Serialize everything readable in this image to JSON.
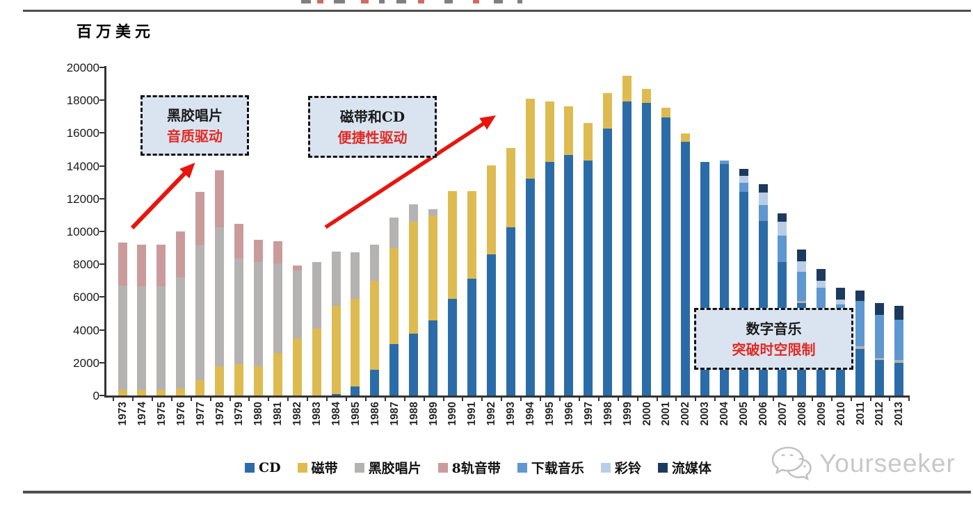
{
  "chart": {
    "unit_label": "百万美元",
    "watermark_text": "Yourseeker"
  },
  "chart_data": {
    "type": "bar",
    "stacked": true,
    "title": "百万美元",
    "xlabel": "",
    "ylabel": "百万美元",
    "ylim": [
      0,
      20000
    ],
    "y_tick_step": 2000,
    "y_tick_labels": [
      "0",
      "2000",
      "4000",
      "6000",
      "8000",
      "10000",
      "12000",
      "14000",
      "16000",
      "18000",
      "20000"
    ],
    "grid": false,
    "legend_position": "bottom",
    "categories": [
      1973,
      1974,
      1975,
      1976,
      1977,
      1978,
      1979,
      1980,
      1981,
      1982,
      1983,
      1984,
      1985,
      1986,
      1987,
      1988,
      1989,
      1990,
      1991,
      1992,
      1993,
      1994,
      1995,
      1996,
      1997,
      1998,
      1999,
      2000,
      2001,
      2002,
      2003,
      2004,
      2005,
      2006,
      2007,
      2008,
      2009,
      2010,
      2011,
      2012,
      2013
    ],
    "series": [
      {
        "name": "CD",
        "color": "#2b6ca8",
        "values": [
          0,
          0,
          0,
          0,
          0,
          0,
          0,
          0,
          0,
          0,
          0,
          100,
          570,
          1570,
          3130,
          3760,
          4560,
          5870,
          7125,
          8620,
          10260,
          13220,
          14245,
          14675,
          14320,
          16285,
          17910,
          17855,
          16955,
          15460,
          14240,
          14130,
          12400,
          10620,
          8120,
          5630,
          4250,
          3300,
          2850,
          2150,
          1995
        ]
      },
      {
        "name": "磁带",
        "color": "#ddbb51",
        "values": [
          350,
          330,
          330,
          430,
          930,
          1780,
          1920,
          1780,
          2600,
          3490,
          4060,
          5385,
          5300,
          5410,
          5845,
          6840,
          6410,
          6595,
          5340,
          5410,
          4840,
          4870,
          3665,
          2950,
          2310,
          2165,
          1565,
          850,
          570,
          495,
          0,
          0,
          0,
          0,
          0,
          0,
          0,
          0,
          0,
          0,
          0
        ]
      },
      {
        "name": "黑胶唱片",
        "color": "#b5b3b1",
        "values": [
          6350,
          6330,
          6330,
          6770,
          8230,
          8480,
          6410,
          6340,
          5450,
          4130,
          4060,
          3275,
          2850,
          2235,
          1880,
          1040,
          385,
          0,
          0,
          0,
          0,
          0,
          0,
          0,
          0,
          0,
          0,
          0,
          0,
          0,
          0,
          0,
          0,
          0,
          0,
          140,
          150,
          150,
          150,
          150,
          150
        ]
      },
      {
        "name": "8轨音带",
        "color": "#c99c9b",
        "values": [
          2630,
          2530,
          2530,
          2820,
          3240,
          3490,
          2140,
          1360,
          1350,
          290,
          0,
          0,
          0,
          0,
          0,
          0,
          0,
          0,
          0,
          0,
          0,
          0,
          0,
          0,
          0,
          0,
          0,
          0,
          0,
          0,
          0,
          0,
          0,
          0,
          0,
          0,
          0,
          0,
          0,
          0,
          0
        ]
      },
      {
        "name": "下载音乐",
        "color": "#5f97d0",
        "values": [
          0,
          0,
          0,
          0,
          0,
          0,
          0,
          0,
          0,
          0,
          0,
          0,
          0,
          0,
          0,
          0,
          0,
          0,
          0,
          0,
          0,
          0,
          0,
          0,
          0,
          0,
          0,
          0,
          0,
          0,
          0,
          190,
          550,
          1000,
          1640,
          1780,
          2150,
          2105,
          2770,
          2600,
          2485
        ]
      },
      {
        "name": "彩铃",
        "color": "#b9cde6",
        "values": [
          0,
          0,
          0,
          0,
          0,
          0,
          0,
          0,
          0,
          0,
          0,
          0,
          0,
          0,
          0,
          0,
          0,
          0,
          0,
          0,
          0,
          0,
          0,
          0,
          0,
          0,
          0,
          0,
          0,
          0,
          0,
          0,
          450,
          770,
          850,
          645,
          430,
          285,
          0,
          0,
          0
        ]
      },
      {
        "name": "流媒体",
        "color": "#1b3a5e",
        "values": [
          0,
          0,
          0,
          0,
          0,
          0,
          0,
          0,
          0,
          0,
          0,
          0,
          0,
          0,
          0,
          0,
          0,
          0,
          0,
          0,
          0,
          0,
          0,
          0,
          0,
          0,
          0,
          0,
          0,
          0,
          0,
          0,
          420,
          500,
          500,
          710,
          715,
          710,
          640,
          750,
          855
        ]
      }
    ]
  },
  "annotations": {
    "box1": {
      "line1": "黑胶唱片",
      "line2": "音质驱动"
    },
    "box2": {
      "line1": "磁带和CD",
      "line2": "便捷性驱动"
    },
    "box3": {
      "line1": "数字音乐",
      "line2": "突破时空限制"
    }
  },
  "colors": {
    "arrow_red": "#e8150d",
    "annotation_fill": "#dae4f1",
    "annotation_red_text": "#e02a22",
    "rule_gray": "#4f4f4f",
    "watermark_gray": "#c8c8c8"
  }
}
